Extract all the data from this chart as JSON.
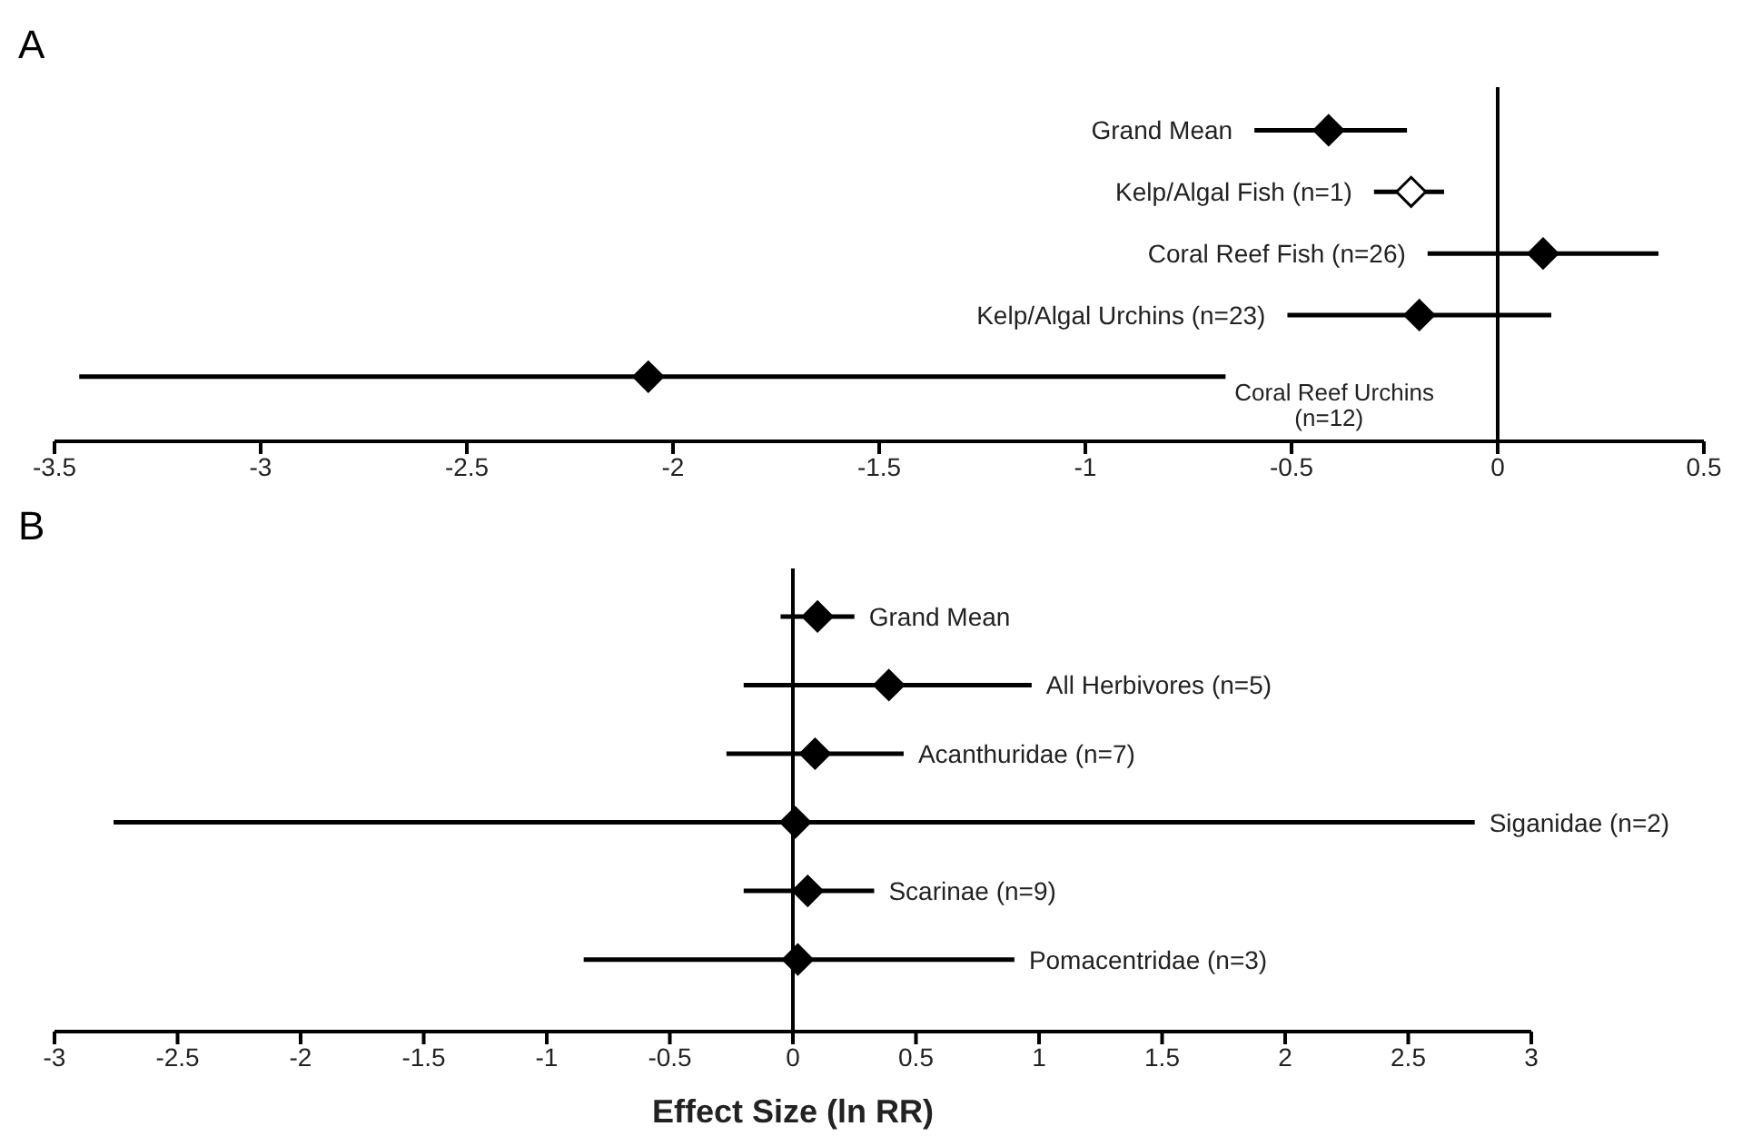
{
  "chart_data": [
    {
      "type": "scatter",
      "title": "A",
      "orientation": "horizontal",
      "categories": [
        "Grand Mean",
        "Kelp/Algal Fish (n=1)",
        "Coral Reef Fish (n=26)",
        "Kelp/Algal Urchins (n=23)",
        "Coral Reef Urchins (n=12)"
      ],
      "values": [
        -0.41,
        -0.21,
        0.11,
        -0.19,
        -2.06
      ],
      "errors": [
        [
          -0.59,
          -0.22
        ],
        [
          -0.3,
          -0.13
        ],
        [
          -0.17,
          0.39
        ],
        [
          -0.51,
          0.13
        ],
        [
          -3.44,
          -0.66
        ]
      ],
      "colors": [
        "#000000",
        "#ffffff",
        "#000000",
        "#000000",
        "#000000"
      ],
      "marker": "diamond",
      "xlim": [
        -3.5,
        0.5
      ],
      "xticks": [
        -3.5,
        -3,
        -2.5,
        -2,
        -1.5,
        -1,
        -0.5,
        0,
        0.5
      ],
      "tick_labels": "x",
      "grid": false,
      "legend": false,
      "ref_lines": [
        {
          "axis": "x",
          "value": 0,
          "color": "#000000"
        }
      ]
    },
    {
      "type": "scatter",
      "title": "B",
      "xlabel": "Effect Size (ln RR)",
      "orientation": "horizontal",
      "categories": [
        "Grand Mean",
        "All Herbivores (n=5)",
        "Acanthuridae (n=7)",
        "Siganidae (n=2)",
        "Scarinae (n=9)",
        "Pomacentridae (n=3)"
      ],
      "values": [
        0.1,
        0.39,
        0.09,
        0.01,
        0.06,
        0.02
      ],
      "errors": [
        [
          -0.05,
          0.25
        ],
        [
          -0.2,
          0.97
        ],
        [
          -0.27,
          0.45
        ],
        [
          -2.76,
          2.77
        ],
        [
          -0.2,
          0.33
        ],
        [
          -0.85,
          0.9
        ]
      ],
      "colors": [
        "#000000",
        "#000000",
        "#000000",
        "#000000",
        "#000000",
        "#000000"
      ],
      "marker": "diamond",
      "xlim": [
        -3,
        3
      ],
      "xticks": [
        -3,
        -2.5,
        -2,
        -1.5,
        -1,
        -0.5,
        0,
        0.5,
        1,
        1.5,
        2,
        2.5,
        3
      ],
      "tick_labels": "x",
      "grid": false,
      "legend": false,
      "ref_lines": [
        {
          "axis": "x",
          "value": 0,
          "color": "#000000"
        }
      ]
    }
  ]
}
